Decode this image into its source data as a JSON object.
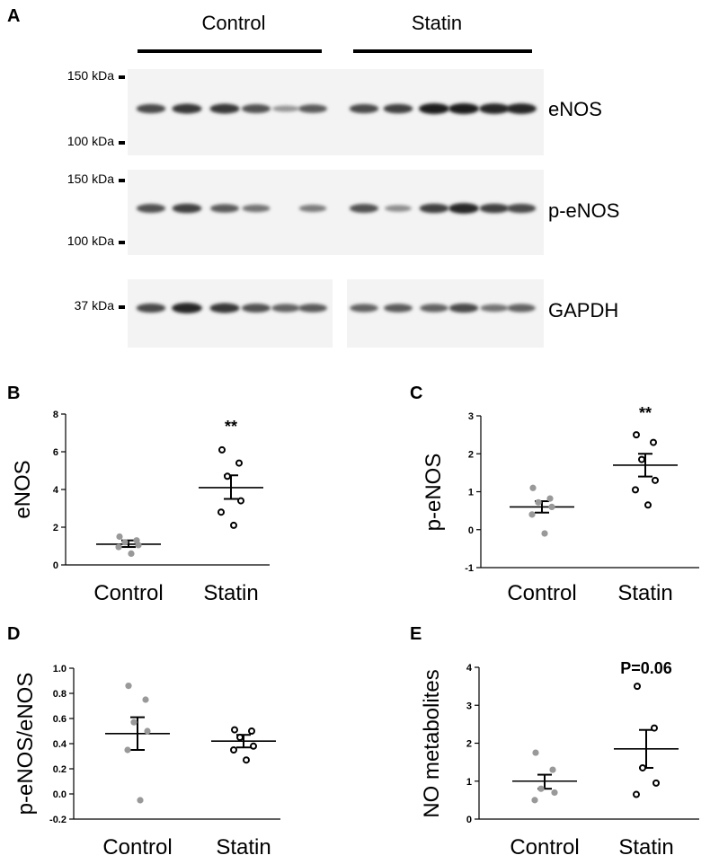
{
  "figure": {
    "panel_a": {
      "letter": "A",
      "groups": [
        "Control",
        "Statin"
      ],
      "blots": [
        {
          "label": "eNOS",
          "markers": [
            "150 kDa",
            "100 kDa"
          ],
          "control": [
            0.75,
            0.85,
            0.85,
            0.7,
            0.3,
            0.65
          ],
          "statin": [
            0.75,
            0.8,
            1.0,
            1.0,
            0.95,
            0.95
          ]
        },
        {
          "label": "p-eNOS",
          "markers": [
            "150 kDa",
            "100 kDa"
          ],
          "control": [
            0.7,
            0.8,
            0.65,
            0.5,
            0.0,
            0.45
          ],
          "statin": [
            0.7,
            0.35,
            0.8,
            0.95,
            0.8,
            0.75
          ]
        },
        {
          "label": "GAPDH",
          "markers": [
            "37 kDa"
          ],
          "control": [
            0.75,
            0.95,
            0.85,
            0.7,
            0.6,
            0.65
          ],
          "statin": [
            0.6,
            0.65,
            0.6,
            0.75,
            0.5,
            0.6
          ]
        }
      ]
    }
  },
  "chart_data": [
    {
      "panel": "B",
      "type": "scatter",
      "ylabel": "eNOS",
      "categories": [
        "Control",
        "Statin"
      ],
      "ylim": [
        0,
        8
      ],
      "yticks": [
        "0",
        "2",
        "4",
        "6",
        "8"
      ],
      "annotation": "**",
      "series": [
        {
          "category": "Control",
          "color": "#999999",
          "marker": "filled",
          "values": [
            1.5,
            1.3,
            1.2,
            1.05,
            0.95,
            0.6
          ],
          "mean": 1.1,
          "sem": [
            0.95,
            1.3
          ]
        },
        {
          "category": "Statin",
          "color": "#000000",
          "marker": "open",
          "values": [
            6.1,
            5.4,
            4.7,
            3.4,
            2.8,
            2.1
          ],
          "mean": 4.1,
          "sem": [
            3.5,
            4.75
          ]
        }
      ]
    },
    {
      "panel": "C",
      "type": "scatter",
      "ylabel": "p-eNOS",
      "categories": [
        "Control",
        "Statin"
      ],
      "ylim": [
        -1,
        3
      ],
      "yticks": [
        "-1",
        "0",
        "1",
        "2",
        "3"
      ],
      "annotation": "**",
      "series": [
        {
          "category": "Control",
          "color": "#999999",
          "marker": "filled",
          "values": [
            1.1,
            0.82,
            0.72,
            0.6,
            0.4,
            -0.1
          ],
          "mean": 0.6,
          "sem": [
            0.45,
            0.75
          ]
        },
        {
          "category": "Statin",
          "color": "#000000",
          "marker": "open",
          "values": [
            2.5,
            2.3,
            1.85,
            1.3,
            1.05,
            0.65
          ],
          "mean": 1.7,
          "sem": [
            1.4,
            2.0
          ]
        }
      ]
    },
    {
      "panel": "D",
      "type": "scatter",
      "ylabel": "p-eNOS/eNOS",
      "categories": [
        "Control",
        "Statin"
      ],
      "ylim": [
        -0.2,
        1.0
      ],
      "yticks": [
        "-0.2",
        "0.0",
        "0.2",
        "0.4",
        "0.6",
        "0.8",
        "1.0"
      ],
      "annotation": "",
      "series": [
        {
          "category": "Control",
          "color": "#999999",
          "marker": "filled",
          "values": [
            0.86,
            0.75,
            0.57,
            0.5,
            0.35,
            -0.05
          ],
          "mean": 0.48,
          "sem": [
            0.35,
            0.61
          ]
        },
        {
          "category": "Statin",
          "color": "#000000",
          "marker": "open",
          "values": [
            0.51,
            0.5,
            0.45,
            0.38,
            0.35,
            0.27
          ],
          "mean": 0.42,
          "sem": [
            0.37,
            0.47
          ]
        }
      ]
    },
    {
      "panel": "E",
      "type": "scatter",
      "ylabel": "NO metabolites",
      "categories": [
        "Control",
        "Statin"
      ],
      "ylim": [
        0,
        4
      ],
      "yticks": [
        "0",
        "1",
        "2",
        "3",
        "4"
      ],
      "annotation": "P=0.06",
      "series": [
        {
          "category": "Control",
          "color": "#999999",
          "marker": "filled",
          "values": [
            1.75,
            1.3,
            0.8,
            0.7,
            0.5
          ],
          "mean": 1.0,
          "sem": [
            0.8,
            1.17
          ]
        },
        {
          "category": "Statin",
          "color": "#000000",
          "marker": "open",
          "values": [
            3.5,
            2.4,
            1.35,
            0.95,
            0.65
          ],
          "mean": 1.85,
          "sem": [
            1.35,
            2.35
          ]
        }
      ]
    }
  ]
}
